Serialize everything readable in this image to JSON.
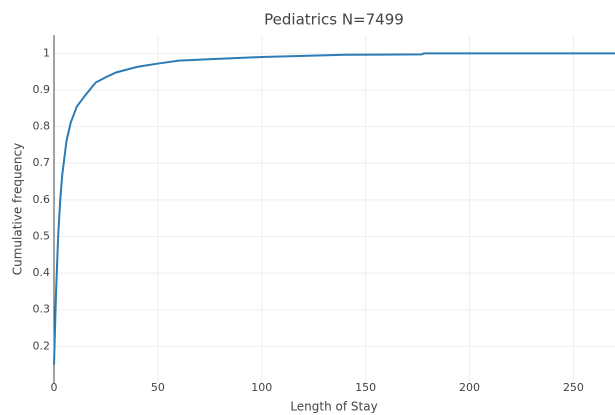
{
  "chart_data": {
    "type": "line",
    "title": "Pediatrics N=7499",
    "x_label": "Length of Stay",
    "y_label": "Cumulative frequency",
    "series": [
      {
        "name": "Pediatrics",
        "color": "#2c7bb6",
        "x": [
          0,
          1,
          2,
          3,
          4,
          6,
          8,
          11,
          15,
          20,
          25,
          30,
          40,
          50,
          60,
          80,
          100,
          140,
          177,
          178,
          270
        ],
        "values": [
          0.15,
          0.35,
          0.5,
          0.6,
          0.67,
          0.76,
          0.81,
          0.855,
          0.885,
          0.92,
          0.935,
          0.948,
          0.963,
          0.972,
          0.98,
          0.985,
          0.99,
          0.996,
          0.997,
          1,
          1
        ]
      }
    ],
    "xlim": [
      0,
      270
    ],
    "ylim": [
      0.1,
      1.05
    ],
    "xticks": [
      0,
      50,
      100,
      150,
      200,
      250
    ],
    "yticks": [
      0.2,
      0.3,
      0.4,
      0.5,
      0.6,
      0.7,
      0.8,
      0.9,
      1
    ],
    "grid": true
  }
}
